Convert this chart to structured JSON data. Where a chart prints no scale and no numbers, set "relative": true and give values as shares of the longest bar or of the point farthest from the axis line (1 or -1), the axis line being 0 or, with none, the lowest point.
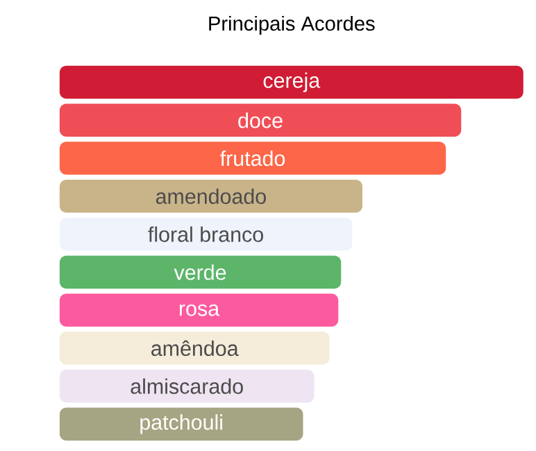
{
  "chart_data": {
    "type": "bar",
    "orientation": "horizontal",
    "relative": true,
    "title": "Principais Acordes",
    "categories": [
      "cereja",
      "doce",
      "frutado",
      "amendoado",
      "floral branco",
      "verde",
      "rosa",
      "amêndoa",
      "almiscarado",
      "patchouli"
    ],
    "values": [
      1,
      0.866,
      0.833,
      0.653,
      0.631,
      0.607,
      0.601,
      0.582,
      0.549,
      0.525
    ],
    "colors": [
      "#d01c34",
      "#f04e57",
      "#fd6648",
      "#c9b48a",
      "#eef3fc",
      "#5db56a",
      "#fc5a9e",
      "#f5ecda",
      "#efe5f2",
      "#a5a583"
    ]
  }
}
